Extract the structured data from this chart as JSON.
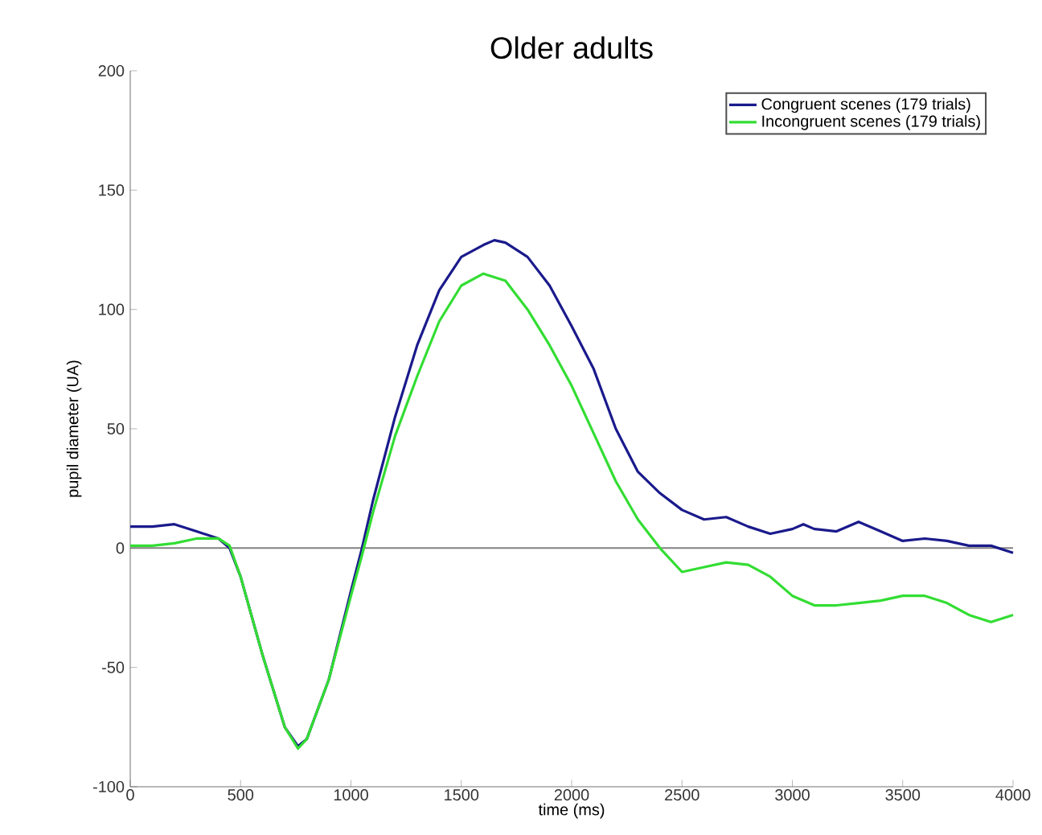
{
  "chart_data": {
    "type": "line",
    "title": "Older adults",
    "xlabel": "time (ms)",
    "ylabel": "pupil diameter (UA)",
    "xlim": [
      0,
      4000
    ],
    "ylim": [
      -100,
      200
    ],
    "xticks": [
      0,
      500,
      1000,
      1500,
      2000,
      2500,
      3000,
      3500,
      4000
    ],
    "yticks": [
      -100,
      -50,
      0,
      50,
      100,
      150,
      200
    ],
    "legend": "top right",
    "grid": false,
    "marker": "none",
    "line_style": "solid",
    "ref_lines": [
      {
        "axis": "y",
        "value": 0,
        "color": "#808080"
      }
    ],
    "series": [
      {
        "name": "Congruent scenes (179 trials)",
        "color": "#1a1a8c",
        "x": [
          0,
          100,
          200,
          300,
          400,
          450,
          500,
          600,
          700,
          760,
          800,
          900,
          1000,
          1050,
          1100,
          1200,
          1300,
          1400,
          1500,
          1600,
          1650,
          1700,
          1800,
          1900,
          2000,
          2100,
          2200,
          2300,
          2400,
          2500,
          2600,
          2700,
          2800,
          2900,
          3000,
          3050,
          3100,
          3200,
          3300,
          3400,
          3500,
          3600,
          3700,
          3800,
          3900,
          4000
        ],
        "values": [
          9,
          9,
          10,
          7,
          4,
          0,
          -12,
          -45,
          -75,
          -83,
          -80,
          -55,
          -18,
          0,
          20,
          55,
          85,
          108,
          122,
          127,
          129,
          128,
          122,
          110,
          93,
          75,
          50,
          32,
          23,
          16,
          12,
          13,
          9,
          6,
          8,
          10,
          8,
          7,
          11,
          7,
          3,
          4,
          3,
          1,
          1,
          -2
        ]
      },
      {
        "name": "Incongruent scenes (179 trials)",
        "color": "#33dd33",
        "x": [
          0,
          100,
          200,
          300,
          400,
          450,
          500,
          600,
          700,
          760,
          800,
          900,
          1000,
          1050,
          1100,
          1200,
          1300,
          1400,
          1500,
          1600,
          1700,
          1800,
          1900,
          2000,
          2100,
          2200,
          2300,
          2400,
          2500,
          2600,
          2700,
          2800,
          2900,
          3000,
          3100,
          3200,
          3300,
          3400,
          3500,
          3600,
          3700,
          3800,
          3900,
          4000
        ],
        "values": [
          1,
          1,
          2,
          4,
          4,
          1,
          -12,
          -45,
          -75,
          -84,
          -80,
          -55,
          -20,
          -3,
          15,
          47,
          72,
          95,
          110,
          115,
          112,
          100,
          85,
          68,
          48,
          28,
          12,
          0,
          -10,
          -8,
          -6,
          -7,
          -12,
          -20,
          -24,
          -24,
          -23,
          -22,
          -20,
          -20,
          -23,
          -28,
          -31,
          -28
        ]
      }
    ]
  }
}
